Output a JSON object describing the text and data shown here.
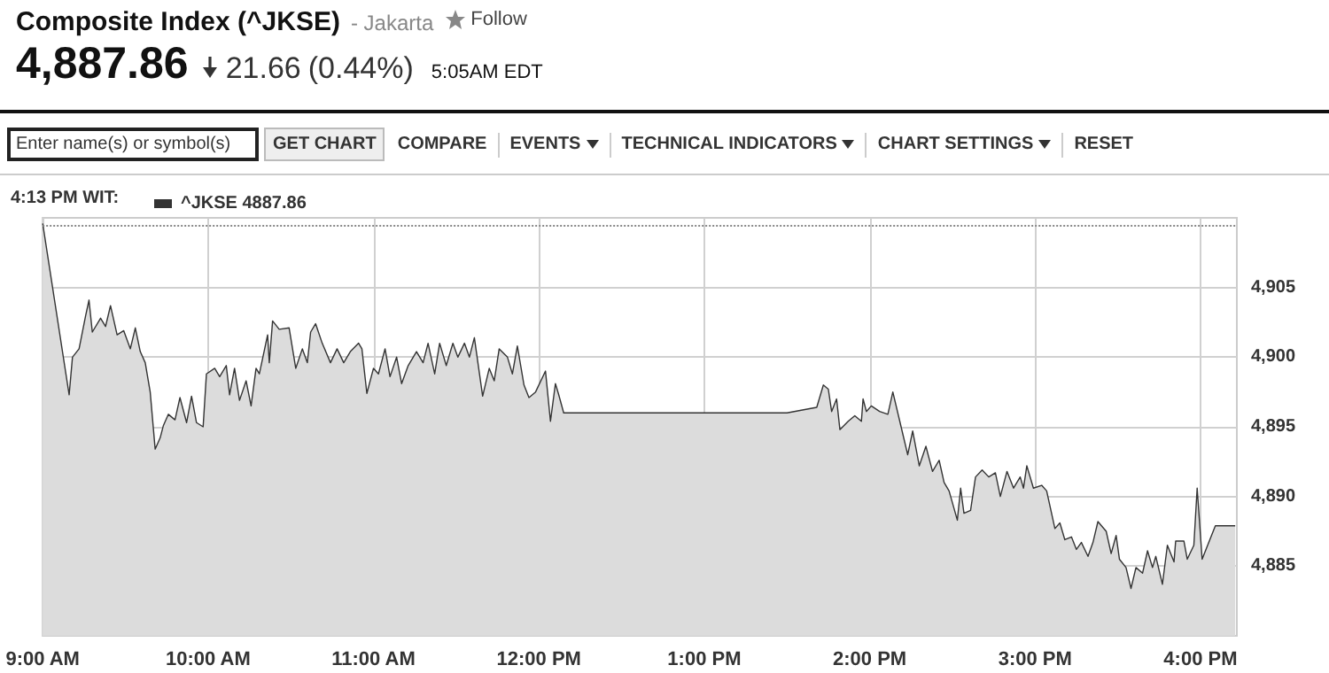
{
  "chart_data": {
    "type": "area",
    "title": "Composite Index (^JKSE)",
    "subtitle": "- Jakarta",
    "annotations": [
      "Follow",
      "4,887.86",
      "21.66",
      "(0.44%)",
      "5:05AM EDT",
      "Enter name(s) or symbol(s)",
      "GET CHART",
      "COMPARE",
      "EVENTS",
      "TECHNICAL INDICATORS",
      "CHART SETTINGS",
      "RESET"
    ],
    "legend_title": "4:13 PM WIT:",
    "legend": "top left",
    "grid": true,
    "marker": "none",
    "line_style": "solid",
    "tick_labels": "xy",
    "xlim": [
      9,
      16.22
    ],
    "ylim": [
      4880,
      4910
    ],
    "xticks": [
      {
        "value": 9,
        "label": "9:00 AM"
      },
      {
        "value": 10,
        "label": "10:00 AM"
      },
      {
        "value": 11,
        "label": "11:00 AM"
      },
      {
        "value": 12,
        "label": "12:00 PM"
      },
      {
        "value": 13,
        "label": "1:00 PM"
      },
      {
        "value": 14,
        "label": "2:00 PM"
      },
      {
        "value": 15,
        "label": "3:00 PM"
      },
      {
        "value": 16,
        "label": "4:00 PM"
      }
    ],
    "yticks": [
      {
        "value": 4885,
        "label": "4,885"
      },
      {
        "value": 4890,
        "label": "4,890"
      },
      {
        "value": 4895,
        "label": "4,895"
      },
      {
        "value": 4900,
        "label": "4,900"
      },
      {
        "value": 4905,
        "label": "4,905"
      }
    ],
    "ref_lines": [
      {
        "axis": "y",
        "value": 4909.52,
        "label": null,
        "line_style": "dotted",
        "color": "#888888"
      }
    ],
    "series": [
      {
        "name": "^JKSE 4887.86",
        "color": "#333333",
        "x": [
          9.0,
          9.16,
          9.18,
          9.22,
          9.26,
          9.28,
          9.3,
          9.35,
          9.38,
          9.41,
          9.45,
          9.49,
          9.53,
          9.56,
          9.59,
          9.62,
          9.65,
          9.68,
          9.71,
          9.73,
          9.76,
          9.8,
          9.83,
          9.87,
          9.9,
          9.93,
          9.97,
          9.99,
          10.04,
          10.07,
          10.11,
          10.13,
          10.16,
          10.19,
          10.23,
          10.26,
          10.29,
          10.31,
          10.36,
          10.37,
          10.39,
          10.43,
          10.49,
          10.53,
          10.57,
          10.6,
          10.62,
          10.65,
          10.69,
          10.74,
          10.78,
          10.82,
          10.86,
          10.91,
          10.93,
          10.96,
          11.0,
          11.03,
          11.07,
          11.1,
          11.14,
          11.17,
          11.21,
          11.26,
          11.3,
          11.33,
          11.37,
          11.4,
          11.44,
          11.48,
          11.51,
          11.55,
          11.58,
          11.61,
          11.66,
          11.7,
          11.73,
          11.76,
          11.81,
          11.84,
          11.87,
          11.91,
          11.94,
          11.98,
          12.04,
          12.07,
          12.1,
          12.12,
          12.15,
          13.5,
          13.68,
          13.72,
          13.75,
          13.77,
          13.8,
          13.82,
          13.87,
          13.91,
          13.95,
          13.96,
          13.98,
          14.01,
          14.06,
          14.11,
          14.14,
          14.19,
          14.23,
          14.26,
          14.3,
          14.34,
          14.38,
          14.42,
          14.45,
          14.48,
          14.53,
          14.55,
          14.57,
          14.61,
          14.64,
          14.68,
          14.72,
          14.76,
          14.79,
          14.83,
          14.87,
          14.91,
          14.93,
          14.95,
          14.99,
          15.04,
          15.07,
          15.12,
          15.15,
          15.18,
          15.22,
          15.25,
          15.28,
          15.32,
          15.35,
          15.38,
          15.43,
          15.46,
          15.49,
          15.51,
          15.55,
          15.58,
          15.61,
          15.65,
          15.68,
          15.71,
          15.73,
          15.77,
          15.8,
          15.84,
          15.85,
          15.9,
          15.92,
          15.96,
          15.98,
          16.01,
          16.09,
          16.21
        ],
        "values": [
          4909.6,
          4897.3,
          4900.0,
          4900.6,
          4903.0,
          4904.1,
          4901.8,
          4902.8,
          4902.2,
          4903.7,
          4901.6,
          4901.9,
          4900.6,
          4902.1,
          4900.4,
          4899.6,
          4897.5,
          4893.4,
          4894.2,
          4895.1,
          4895.9,
          4895.5,
          4897.1,
          4895.3,
          4897.2,
          4895.3,
          4895.0,
          4898.8,
          4899.2,
          4898.6,
          4899.4,
          4897.3,
          4899.2,
          4896.9,
          4898.3,
          4896.5,
          4899.2,
          4898.8,
          4901.6,
          4899.6,
          4902.6,
          4902.0,
          4902.1,
          4899.2,
          4900.6,
          4899.6,
          4901.8,
          4902.4,
          4901.0,
          4899.6,
          4900.6,
          4899.6,
          4900.4,
          4901.0,
          4900.6,
          4897.4,
          4899.2,
          4898.8,
          4900.6,
          4898.6,
          4900.0,
          4898.1,
          4899.4,
          4900.4,
          4899.6,
          4901.0,
          4898.8,
          4901.0,
          4899.4,
          4901.0,
          4900.0,
          4901.0,
          4900.0,
          4901.4,
          4897.2,
          4899.2,
          4898.3,
          4900.6,
          4900.0,
          4898.8,
          4900.8,
          4898.0,
          4897.1,
          4897.5,
          4899.0,
          4895.4,
          4898.1,
          4897.3,
          4896.0,
          4896.0,
          4896.4,
          4898.0,
          4897.7,
          4896.1,
          4897.0,
          4894.8,
          4895.4,
          4895.8,
          4895.4,
          4897.0,
          4896.1,
          4896.5,
          4896.1,
          4895.9,
          4897.5,
          4895.0,
          4893.0,
          4894.7,
          4892.2,
          4893.6,
          4891.8,
          4892.6,
          4891.0,
          4890.4,
          4888.3,
          4890.6,
          4888.8,
          4889.0,
          4891.4,
          4891.9,
          4891.4,
          4891.7,
          4890.0,
          4891.8,
          4890.6,
          4891.4,
          4890.6,
          4892.2,
          4890.6,
          4890.8,
          4890.4,
          4887.7,
          4888.1,
          4886.9,
          4887.1,
          4886.2,
          4886.7,
          4885.7,
          4886.7,
          4888.2,
          4887.5,
          4885.9,
          4887.2,
          4885.5,
          4884.9,
          4883.4,
          4884.9,
          4884.5,
          4886.1,
          4884.9,
          4885.7,
          4883.7,
          4886.5,
          4885.3,
          4886.8,
          4886.8,
          4885.5,
          4886.5,
          4890.6,
          4885.5,
          4887.9,
          4887.9
        ]
      }
    ]
  }
}
